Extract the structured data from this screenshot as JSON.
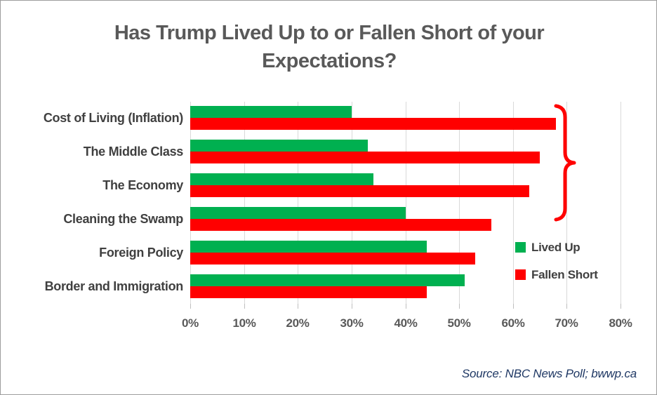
{
  "title": {
    "line1": "Has Trump Lived Up to or Fallen Short of your",
    "line2": "Expectations?"
  },
  "chart_data": {
    "type": "bar",
    "orientation": "horizontal",
    "title": "Has Trump Lived Up to or Fallen Short of your Expectations?",
    "categories": [
      "Cost of Living (Inflation)",
      "The Middle Class",
      "The Economy",
      "Cleaning the Swamp",
      "Foreign Policy",
      "Border and Immigration"
    ],
    "series": [
      {
        "name": "Lived Up",
        "color": "#00B050",
        "values": [
          30,
          33,
          34,
          40,
          44,
          51
        ]
      },
      {
        "name": "Fallen Short",
        "color": "#FF0000",
        "values": [
          68,
          65,
          63,
          56,
          53,
          44
        ]
      }
    ],
    "x_ticks": [
      "0%",
      "10%",
      "20%",
      "30%",
      "40%",
      "50%",
      "60%",
      "70%",
      "80%"
    ],
    "xlim": [
      0,
      80
    ],
    "grid": true,
    "legend_position": "right-middle",
    "annotation": {
      "type": "brace",
      "color": "#FF0000",
      "grouped_categories": [
        "Cost of Living (Inflation)",
        "The Middle Class",
        "The Economy"
      ]
    }
  },
  "source": "Source: NBC News Poll; bwwp.ca",
  "colors": {
    "lived_up": "#00B050",
    "fallen_short": "#FF0000",
    "title_text": "#595959",
    "category_text": "#404040",
    "axis_text": "#595959",
    "gridline": "#D9D9D9",
    "source_text": "#1F3864",
    "background": "#FFFFFF"
  }
}
